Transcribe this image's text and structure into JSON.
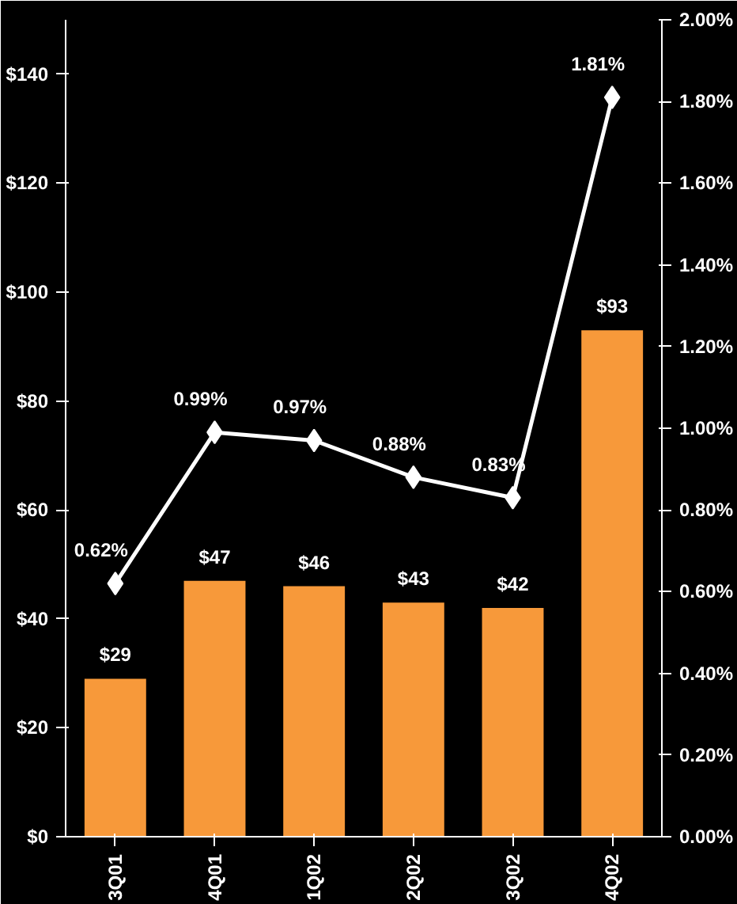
{
  "chart_data": {
    "type": "bar",
    "categories": [
      "3Q01",
      "4Q01",
      "1Q02",
      "2Q02",
      "3Q02",
      "4Q02"
    ],
    "series": [
      {
        "color": "#f7993a",
        "values": [
          29,
          47,
          46,
          43,
          42,
          93
        ],
        "value_labels": [
          "$29",
          "$47",
          "$46",
          "$43",
          "$42",
          "$93"
        ]
      },
      {
        "type": "line",
        "axis": "y2",
        "color": "#ffffff",
        "marker": "diamond",
        "values": [
          0.62,
          0.99,
          0.97,
          0.88,
          0.83,
          1.81
        ],
        "value_labels": [
          "0.62%",
          "0.99%",
          "0.97%",
          "0.88%",
          "0.83%",
          "1.81%"
        ]
      }
    ],
    "ylim": [
      0,
      150
    ],
    "yticks": [
      {
        "value": 0,
        "label": "$0"
      },
      {
        "value": 20,
        "label": "$20"
      },
      {
        "value": 40,
        "label": "$40"
      },
      {
        "value": 60,
        "label": "$60"
      },
      {
        "value": 80,
        "label": "$80"
      },
      {
        "value": 100,
        "label": "$100"
      },
      {
        "value": 120,
        "label": "$120"
      },
      {
        "value": 140,
        "label": "$140"
      }
    ],
    "y2lim": [
      0,
      2.0
    ],
    "y2ticks": [
      {
        "value": 0,
        "label": "0.00%"
      },
      {
        "value": 0.2,
        "label": "0.20%"
      },
      {
        "value": 0.4,
        "label": "0.40%"
      },
      {
        "value": 0.6,
        "label": "0.60%"
      },
      {
        "value": 0.8,
        "label": "0.80%"
      },
      {
        "value": 1.0,
        "label": "1.00%"
      },
      {
        "value": 1.2,
        "label": "1.20%"
      },
      {
        "value": 1.4,
        "label": "1.40%"
      },
      {
        "value": 1.6,
        "label": "1.60%"
      },
      {
        "value": 1.8,
        "label": "1.80%"
      },
      {
        "value": 2.0,
        "label": "2.00%"
      }
    ],
    "grid": false
  }
}
